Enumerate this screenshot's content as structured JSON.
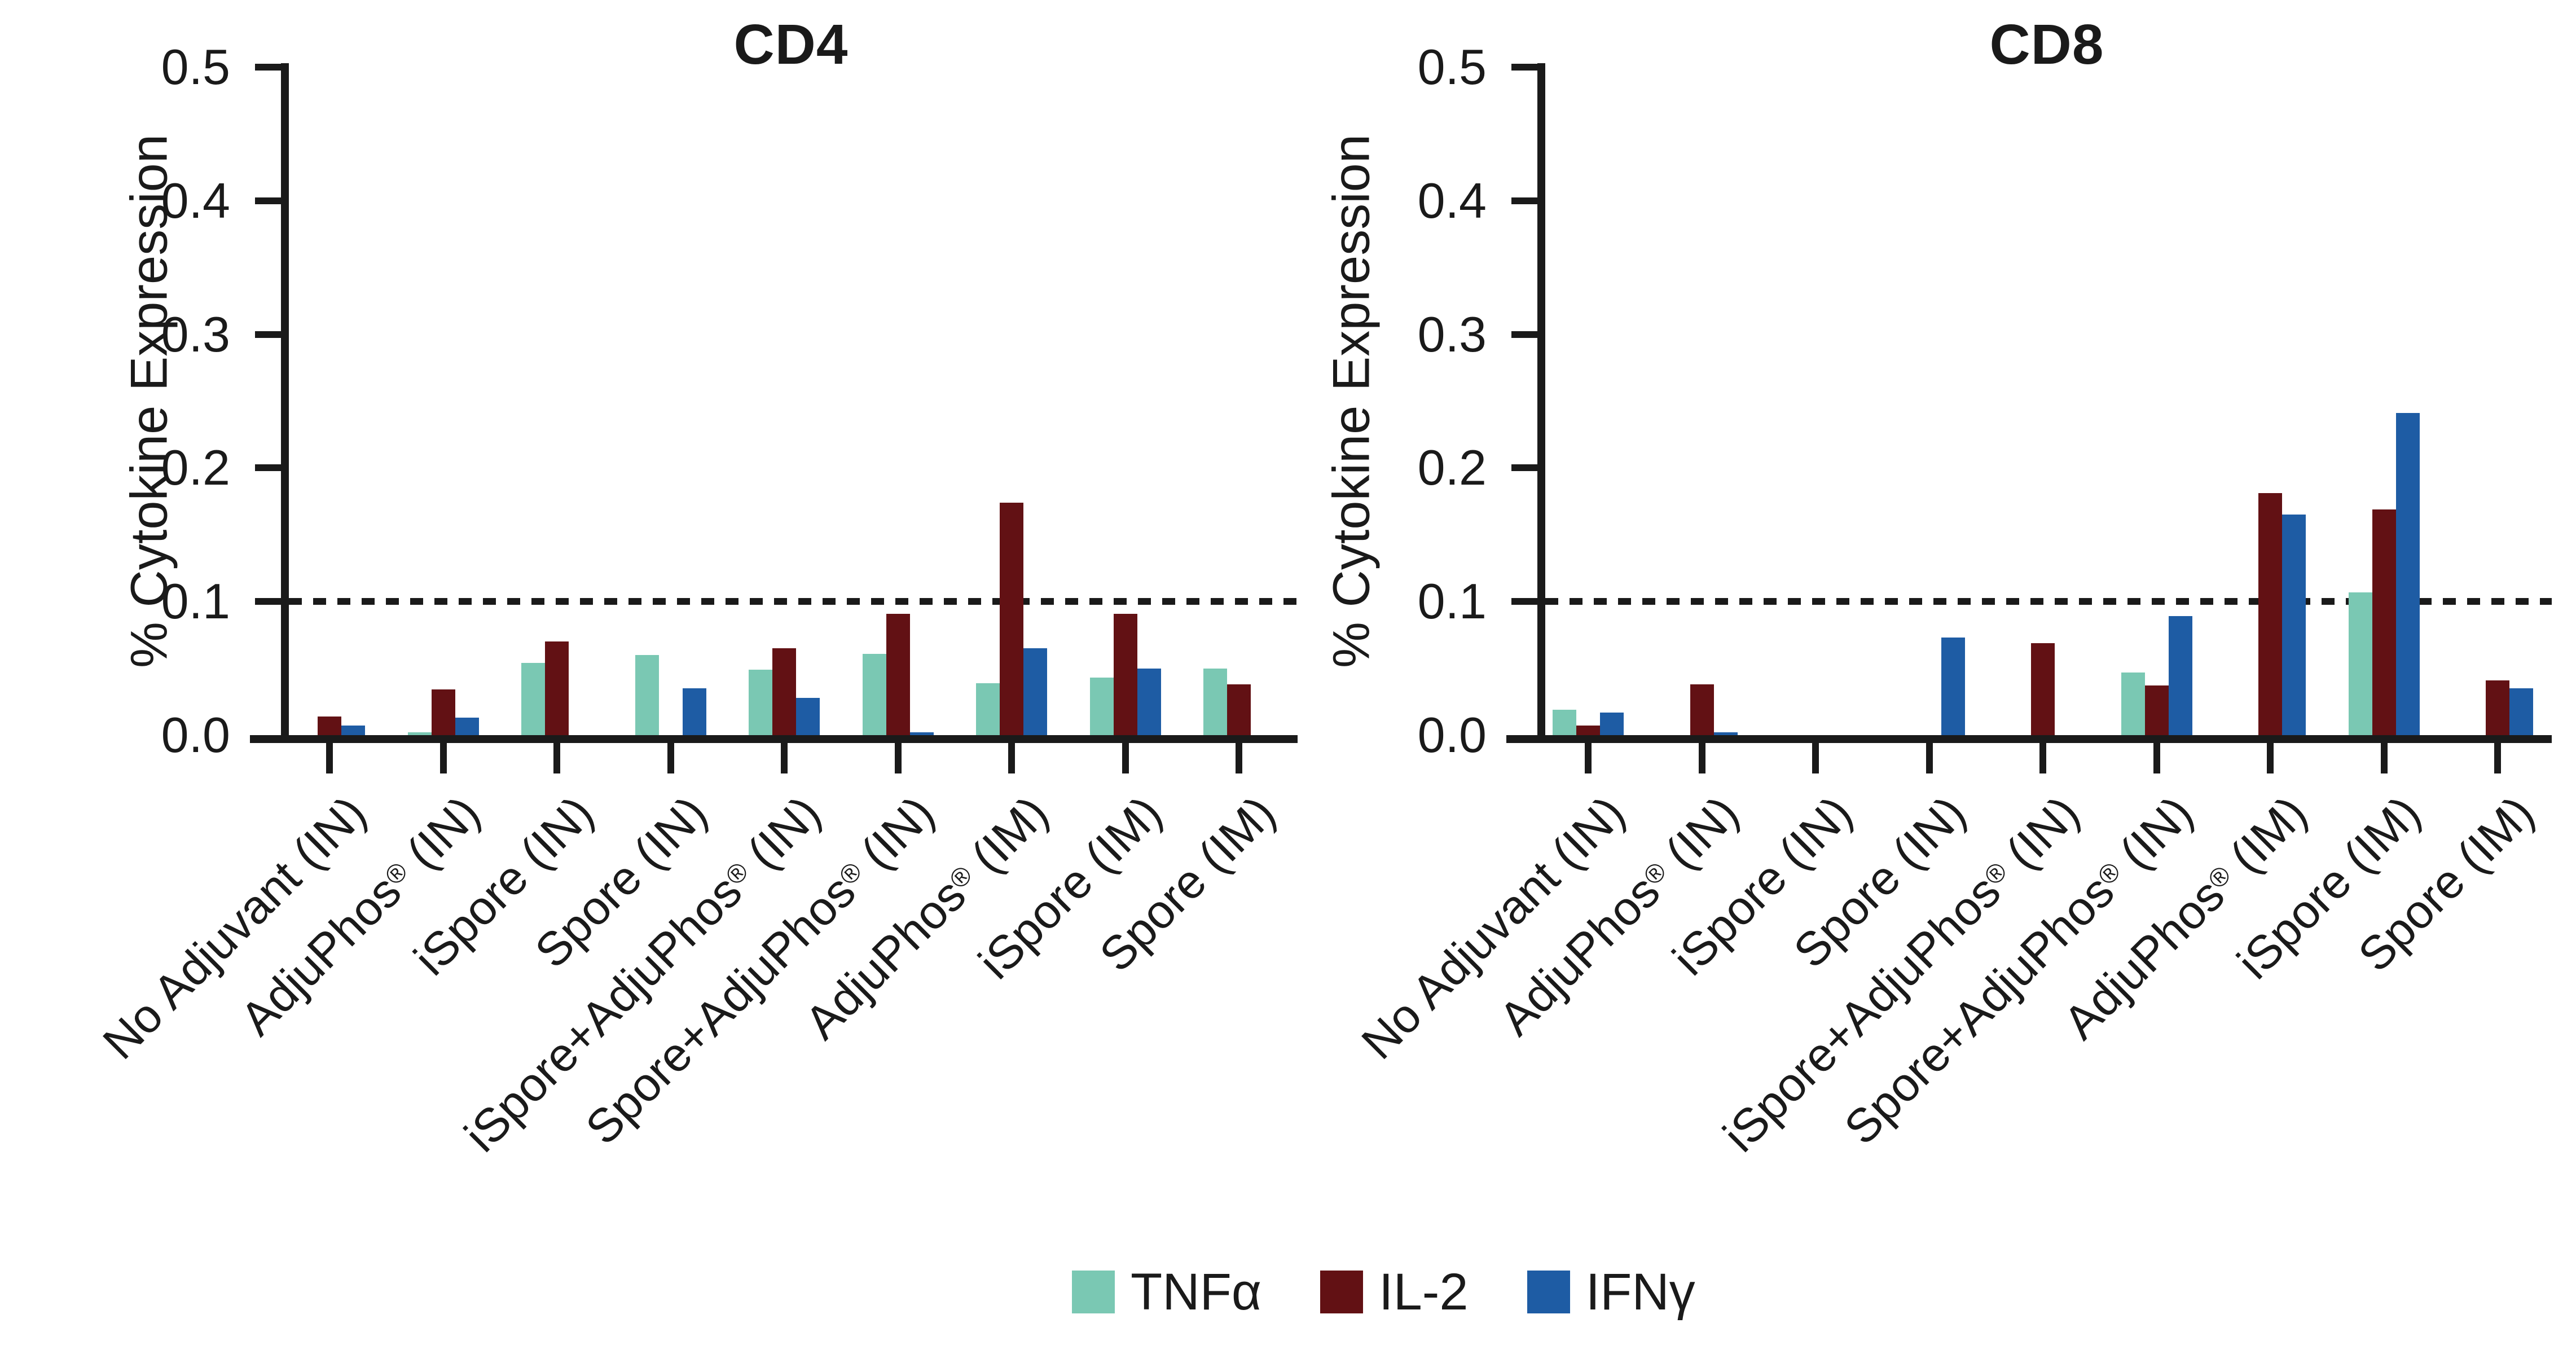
{
  "figure": {
    "background": "#ffffff",
    "axis_color": "#1a1a1a",
    "threshold_value": 0.1,
    "legend": {
      "items": [
        {
          "label": "TNFα",
          "color": "#7AC8B3"
        },
        {
          "label": "IL-2",
          "color": "#621114"
        },
        {
          "label": "IFNγ",
          "color": "#1E5CA4"
        }
      ]
    }
  },
  "chart_data": [
    {
      "type": "bar",
      "title": "CD4",
      "ylabel": "% Cytokine Expression",
      "xlabel": "",
      "ylim": [
        0,
        0.5
      ],
      "ytick_labels": [
        "0.0",
        "0.1",
        "0.2",
        "0.3",
        "0.4",
        "0.5"
      ],
      "grid": false,
      "dashed_threshold_y": 0.1,
      "legend_position": "bottom",
      "categories": [
        "No Adjuvant (IN)",
        "AdjuPhos® (IN)",
        "iSpore (IN)",
        "Spore (IN)",
        "iSpore+AdjuPhos® (IN)",
        "Spore+AdjuPhos® (IN)",
        "AdjuPhos® (IM)",
        "iSpore (IM)",
        "Spore (IM)"
      ],
      "series": [
        {
          "name": "TNFα",
          "color": "#7AC8B3",
          "values": [
            0,
            0.002,
            0.054,
            0.06,
            0.049,
            0.061,
            0.039,
            0.043,
            0.05
          ]
        },
        {
          "name": "IL-2",
          "color": "#621114",
          "values": [
            0.014,
            0.034,
            0.07,
            0,
            0.065,
            0.091,
            0.174,
            0.091,
            0.038
          ]
        },
        {
          "name": "IFNγ",
          "color": "#1E5CA4",
          "values": [
            0.007,
            0.013,
            0,
            0.035,
            0.028,
            0.002,
            0.065,
            0.05,
            0
          ]
        }
      ]
    },
    {
      "type": "bar",
      "title": "CD8",
      "ylabel": "% Cytokine Expression",
      "xlabel": "",
      "ylim": [
        0,
        0.5
      ],
      "ytick_labels": [
        "0.0",
        "0.1",
        "0.2",
        "0.3",
        "0.4",
        "0.5"
      ],
      "grid": false,
      "dashed_threshold_y": 0.1,
      "legend_position": "bottom",
      "categories": [
        "No Adjuvant (IN)",
        "AdjuPhos® (IN)",
        "iSpore (IN)",
        "Spore (IN)",
        "iSpore+AdjuPhos® (IN)",
        "Spore+AdjuPhos® (IN)",
        "AdjuPhos® (IM)",
        "iSpore (IM)",
        "Spore (IM)"
      ],
      "series": [
        {
          "name": "TNFα",
          "color": "#7AC8B3",
          "values": [
            0.019,
            0,
            0,
            0,
            0,
            0.047,
            0,
            0.107,
            0
          ]
        },
        {
          "name": "IL-2",
          "color": "#621114",
          "values": [
            0.007,
            0.038,
            0,
            0,
            0.069,
            0.037,
            0.181,
            0.169,
            0.041
          ]
        },
        {
          "name": "IFNγ",
          "color": "#1E5CA4",
          "values": [
            0.017,
            0.002,
            0,
            0.073,
            0,
            0.089,
            0.165,
            0.241,
            0.035
          ]
        }
      ]
    }
  ]
}
